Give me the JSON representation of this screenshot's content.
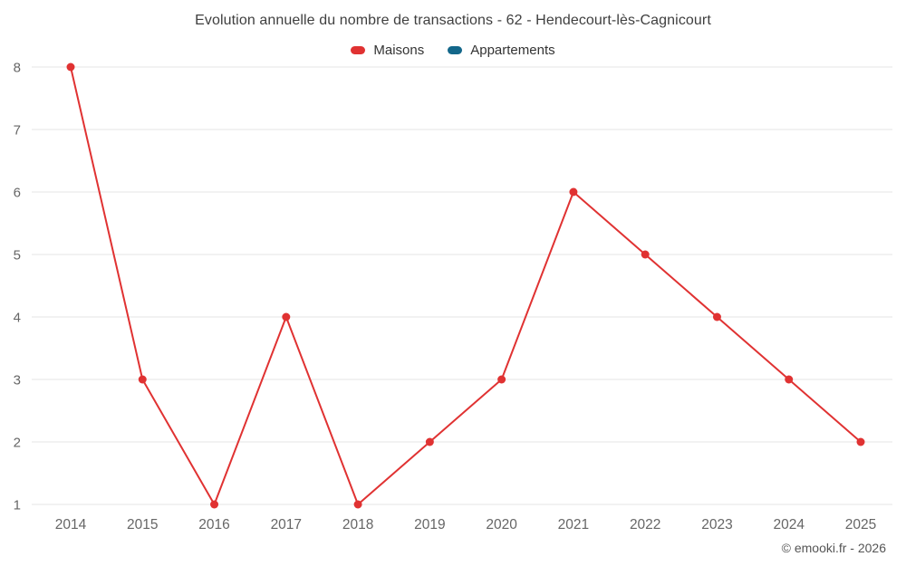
{
  "title": "Evolution annuelle du nombre de transactions - 62 - Hendecourt-lès-Cagnicourt",
  "legend": [
    {
      "label": "Maisons",
      "color": "#e03232"
    },
    {
      "label": "Appartements",
      "color": "#13678a"
    }
  ],
  "footer": "© emooki.fr - 2026",
  "colors": {
    "grid": "#e6e6e6",
    "axis_text": "#666666",
    "title_text": "#3f3f3f"
  },
  "chart_data": {
    "type": "line",
    "title": "Evolution annuelle du nombre de transactions - 62 - Hendecourt-lès-Cagnicourt",
    "x": [
      2014,
      2015,
      2016,
      2017,
      2018,
      2019,
      2020,
      2021,
      2022,
      2023,
      2024,
      2025
    ],
    "series": [
      {
        "name": "Maisons",
        "color": "#e03232",
        "values": [
          8,
          3,
          1,
          4,
          1,
          2,
          3,
          6,
          5,
          4,
          3,
          2
        ]
      },
      {
        "name": "Appartements",
        "color": "#13678a",
        "values": []
      }
    ],
    "xlabel": "",
    "ylabel": "",
    "ylim": [
      1,
      8
    ],
    "yticks": [
      1,
      2,
      3,
      4,
      5,
      6,
      7,
      8
    ],
    "grid": "horizontal",
    "legend_position": "top"
  }
}
